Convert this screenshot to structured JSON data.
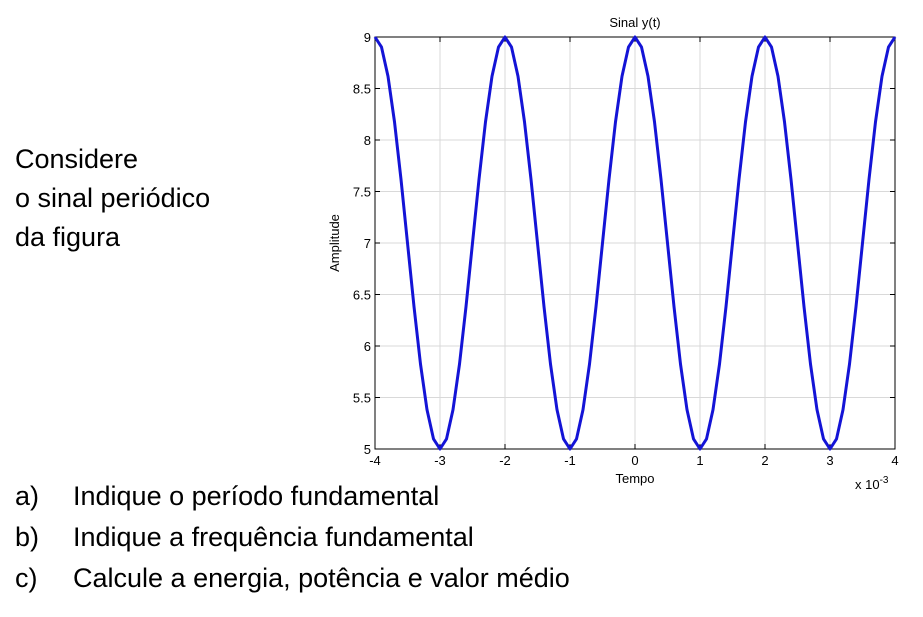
{
  "intro": {
    "lines": [
      "Considere",
      "o sinal periódico",
      "da figura"
    ]
  },
  "questions": [
    {
      "label": "a)",
      "text": "Indique o período fundamental"
    },
    {
      "label": "b)",
      "text": "Indique a frequência fundamental"
    },
    {
      "label": "c)",
      "text": "Calcule a energia, potência e valor médio"
    }
  ],
  "chart_data": {
    "type": "line",
    "title": "Sinal y(t)",
    "xlabel": "Tempo",
    "ylabel": "Amplitude",
    "x_exponent_label": "x 10",
    "x_exponent_power": "-3",
    "xlim": [
      -4,
      4
    ],
    "ylim": [
      5,
      9
    ],
    "xticks": [
      "-4",
      "-3",
      "-2",
      "-1",
      "0",
      "1",
      "2",
      "3",
      "4"
    ],
    "yticks": [
      "5",
      "5.5",
      "6",
      "6.5",
      "7",
      "7.5",
      "8",
      "8.5",
      "9"
    ],
    "grid": true,
    "line_color": "#1414d6",
    "series": [
      {
        "x": [
          -4,
          -3.9,
          -3.8,
          -3.7,
          -3.6,
          -3.5,
          -3.4,
          -3.3,
          -3.2,
          -3.1,
          -3,
          -2.9,
          -2.8,
          -2.7,
          -2.6,
          -2.5,
          -2.4,
          -2.3,
          -2.2,
          -2.1,
          -2,
          -1.9,
          -1.8,
          -1.7,
          -1.6,
          -1.5,
          -1.4,
          -1.3,
          -1.2,
          -1.1,
          -1,
          -0.9,
          -0.8,
          -0.7,
          -0.6,
          -0.5,
          -0.4,
          -0.3,
          -0.2,
          -0.1,
          0,
          0.1,
          0.2,
          0.3,
          0.4,
          0.5,
          0.6,
          0.7,
          0.8,
          0.9,
          1,
          1.1,
          1.2,
          1.3,
          1.4,
          1.5,
          1.6,
          1.7,
          1.8,
          1.9,
          2,
          2.1,
          2.2,
          2.3,
          2.4,
          2.5,
          2.6,
          2.7,
          2.8,
          2.9,
          3,
          3.1,
          3.2,
          3.3,
          3.4,
          3.5,
          3.6,
          3.7,
          3.8,
          3.9,
          4
        ],
        "y": [
          9,
          8.902,
          8.618,
          8.176,
          7.618,
          7,
          6.382,
          5.824,
          5.382,
          5.098,
          5,
          5.098,
          5.382,
          5.824,
          6.382,
          7,
          7.618,
          8.176,
          8.618,
          8.902,
          9,
          8.902,
          8.618,
          8.176,
          7.618,
          7,
          6.382,
          5.824,
          5.382,
          5.098,
          5,
          5.098,
          5.382,
          5.824,
          6.382,
          7,
          7.618,
          8.176,
          8.618,
          8.902,
          9,
          8.902,
          8.618,
          8.176,
          7.618,
          7,
          6.382,
          5.824,
          5.382,
          5.098,
          5,
          5.098,
          5.382,
          5.824,
          6.382,
          7,
          7.618,
          8.176,
          8.618,
          8.902,
          9,
          8.902,
          8.618,
          8.176,
          7.618,
          7,
          6.382,
          5.824,
          5.382,
          5.098,
          5,
          5.098,
          5.382,
          5.824,
          6.382,
          7,
          7.618,
          8.176,
          8.618,
          8.902,
          9
        ]
      }
    ]
  }
}
